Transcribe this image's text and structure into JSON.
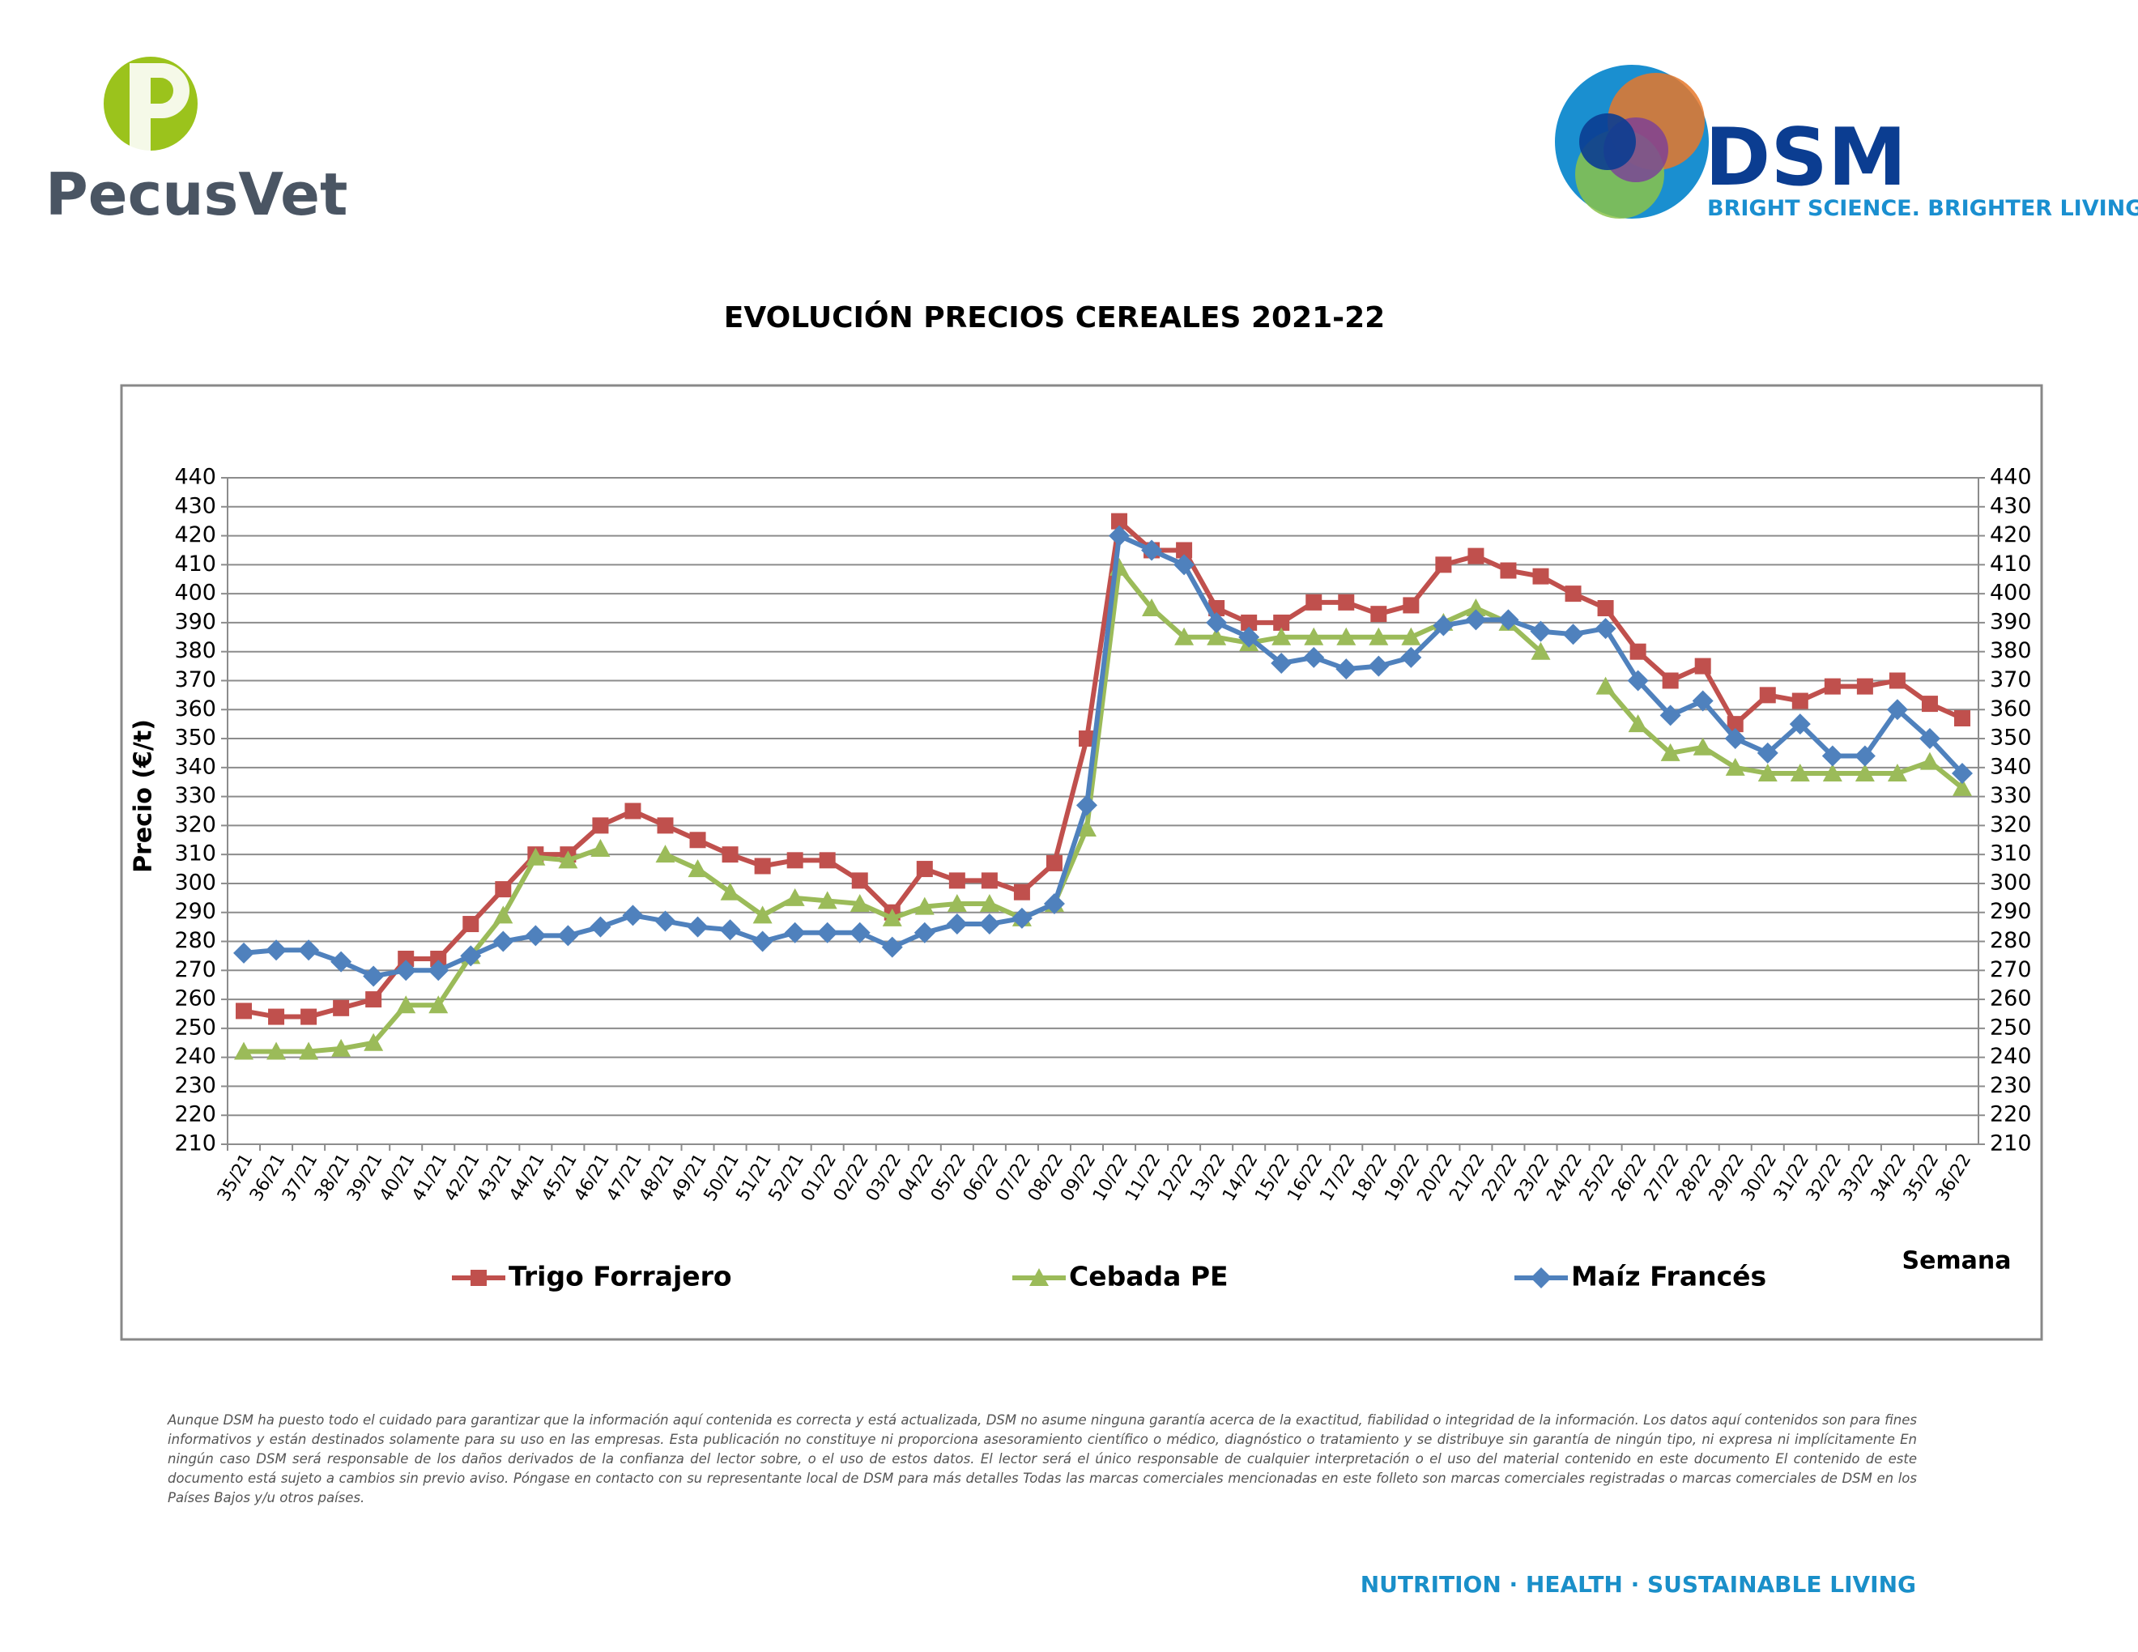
{
  "header": {
    "brand_left": "PecusVet",
    "brand_right": "DSM",
    "tagline": "BRIGHT SCIENCE. BRIGHTER LIVING."
  },
  "chart_data": {
    "type": "line",
    "title": "EVOLUCIÓN PRECIOS CEREALES 2021-22",
    "y_label": "Precio (€/t)",
    "x_label": "Semana",
    "categories": [
      "35/21",
      "36/21",
      "37/21",
      "38/21",
      "39/21",
      "40/21",
      "41/21",
      "42/21",
      "43/21",
      "44/21",
      "45/21",
      "46/21",
      "47/21",
      "48/21",
      "49/21",
      "50/21",
      "51/21",
      "52/21",
      "01/22",
      "02/22",
      "03/22",
      "04/22",
      "05/22",
      "06/22",
      "07/22",
      "08/22",
      "09/22",
      "10/22",
      "11/22",
      "12/22",
      "13/22",
      "14/22",
      "15/22",
      "16/22",
      "17/22",
      "18/22",
      "19/22",
      "20/22",
      "21/22",
      "22/22",
      "23/22",
      "24/22",
      "25/22",
      "26/22",
      "27/22",
      "28/22",
      "29/22",
      "30/22",
      "31/22",
      "32/22",
      "33/22",
      "34/22",
      "35/22",
      "36/22"
    ],
    "series": [
      {
        "name": "Trigo Forrajero",
        "color": "#c0504d",
        "marker": "square",
        "values": [
          256,
          254,
          254,
          257,
          260,
          274,
          274,
          286,
          298,
          310,
          310,
          320,
          325,
          320,
          315,
          310,
          306,
          308,
          308,
          301,
          290,
          305,
          301,
          301,
          297,
          307,
          350,
          425,
          415,
          415,
          395,
          390,
          390,
          397,
          397,
          393,
          396,
          410,
          413,
          408,
          406,
          400,
          395,
          380,
          370,
          375,
          355,
          365,
          363,
          368,
          368,
          370,
          362,
          357
        ]
      },
      {
        "name": "Cebada PE",
        "color": "#9bbb59",
        "marker": "triangle",
        "values": [
          242,
          242,
          242,
          243,
          245,
          258,
          258,
          275,
          289,
          309,
          308,
          312,
          null,
          310,
          305,
          297,
          289,
          295,
          294,
          293,
          288,
          292,
          293,
          293,
          288,
          293,
          319,
          409,
          395,
          385,
          385,
          383,
          385,
          385,
          385,
          385,
          385,
          390,
          395,
          390,
          380,
          null,
          368,
          355,
          345,
          347,
          340,
          338,
          338,
          338,
          338,
          338,
          342,
          333
        ]
      },
      {
        "name": "Maíz Francés",
        "color": "#4f81bd",
        "marker": "diamond",
        "values": [
          276,
          277,
          277,
          273,
          268,
          270,
          270,
          275,
          280,
          282,
          282,
          285,
          289,
          287,
          285,
          284,
          280,
          283,
          283,
          283,
          278,
          283,
          286,
          286,
          288,
          293,
          327,
          420,
          415,
          410,
          390,
          385,
          376,
          378,
          374,
          375,
          378,
          389,
          391,
          391,
          387,
          386,
          388,
          370,
          358,
          363,
          350,
          345,
          355,
          344,
          344,
          360,
          350,
          338
        ]
      }
    ],
    "ylim": [
      210,
      440
    ],
    "yticks": [
      210,
      220,
      230,
      240,
      250,
      260,
      270,
      280,
      290,
      300,
      310,
      320,
      330,
      340,
      350,
      360,
      370,
      380,
      390,
      400,
      410,
      420,
      430,
      440
    ],
    "grid": true,
    "legend": "bottom"
  },
  "footer": {
    "disclaimer": "Aunque DSM ha puesto todo el cuidado para garantizar que la información aquí contenida es correcta y está actualizada, DSM no asume ninguna garantía acerca de la exactitud, fiabilidad o integridad de la información. Los datos aquí contenidos son para fines informativos y están destinados solamente para su uso en las empresas. Esta publicación no constituye ni proporciona asesoramiento científico o médico, diagnóstico o tratamiento y se distribuye sin garantía de ningún tipo, ni expresa ni implícitamente En ningún caso DSM será responsable de los daños derivados de la confianza del lector sobre, o el uso de estos datos. El lector será el único responsable de cualquier interpretación o el uso del material contenido en este documento El contenido de este documento está sujeto a cambios sin previo aviso. Póngase en contacto con su representante local de DSM para más detalles Todas las marcas comerciales mencionadas en este folleto son marcas comerciales registradas o marcas comerciales de DSM en los Países Bajos y/u otros países.",
    "slogan": "NUTRITION · HEALTH · SUSTAINABLE LIVING"
  }
}
